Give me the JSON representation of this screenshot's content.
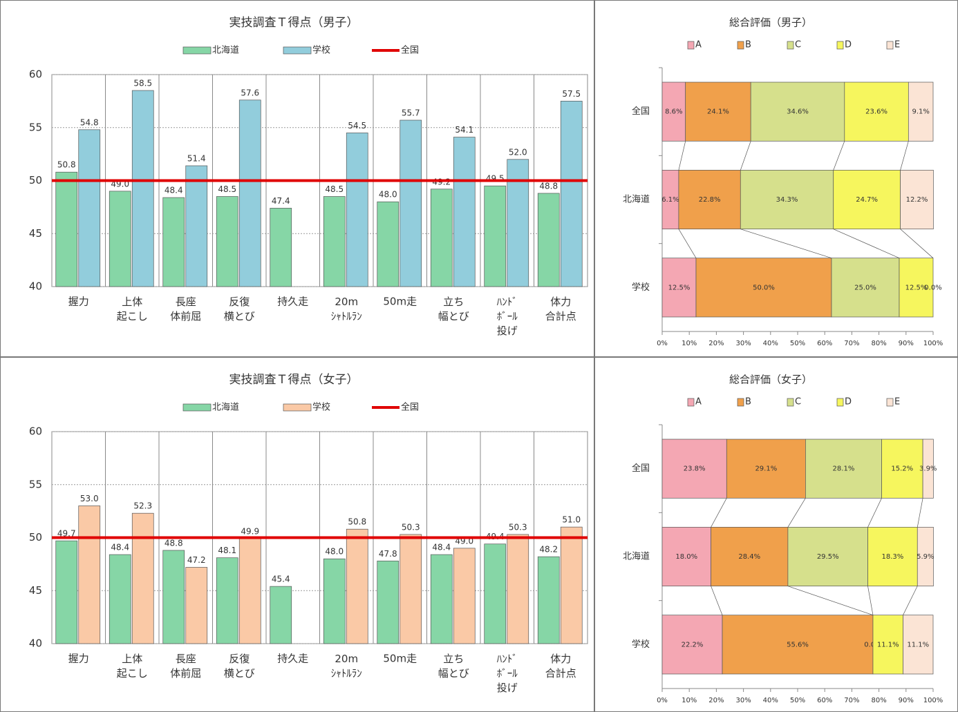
{
  "chart_data": [
    {
      "type": "bar",
      "title": "実技調査Ｔ得点（男子）",
      "categories": [
        "握力",
        "上体\n起こし",
        "長座\n体前屈",
        "反復\n横とび",
        "持久走",
        "20m\nｼｬﾄﾙﾗﾝ",
        "50m走",
        "立ち\n幅とび",
        "ﾊﾝﾄﾞ\nﾎﾞｰﾙ\n投げ",
        "体力\n合計点"
      ],
      "series": [
        {
          "name": "北海道",
          "color": "#86d6a6",
          "values": [
            50.8,
            49.0,
            48.4,
            48.5,
            47.4,
            48.5,
            48.0,
            49.2,
            49.5,
            48.8
          ],
          "value_labels": [
            "50.8",
            "49.0",
            "48.4",
            "48.5",
            "47.4",
            "48.5",
            "48.0",
            "49.2",
            "49.5",
            "48.8"
          ]
        },
        {
          "name": "学校",
          "color": "#92cddc",
          "values": [
            54.8,
            58.5,
            51.4,
            57.6,
            null,
            54.5,
            55.7,
            54.1,
            52.0,
            57.5
          ],
          "value_labels": [
            "54.8",
            "58.5",
            "51.4",
            "57.6",
            null,
            "54.5",
            "55.7",
            "54.1",
            "52.0",
            "57.5"
          ]
        }
      ],
      "reference_line": {
        "name": "全国",
        "value": 50,
        "color": "#e00000"
      },
      "ylim": [
        40,
        60
      ],
      "yticks": [
        40,
        45,
        50,
        55,
        60
      ],
      "grid": true
    },
    {
      "type": "stacked_bar_h",
      "title": "総合評価（男子）",
      "categories": [
        "全国",
        "北海道",
        "学校"
      ],
      "series": [
        {
          "name": "A",
          "color": "#f4a7b3",
          "values": [
            8.6,
            6.1,
            12.5
          ],
          "value_labels": [
            "8.6%",
            "6.1%",
            "12.5%"
          ]
        },
        {
          "name": "B",
          "color": "#f0a04b",
          "values": [
            24.1,
            22.8,
            50.0
          ],
          "value_labels": [
            "24.1%",
            "22.8%",
            "50.0%"
          ]
        },
        {
          "name": "C",
          "color": "#d6e08c",
          "values": [
            34.6,
            34.3,
            25.0
          ],
          "value_labels": [
            "34.6%",
            "34.3%",
            "25.0%"
          ]
        },
        {
          "name": "D",
          "color": "#f6f65e",
          "values": [
            23.6,
            24.7,
            12.5
          ],
          "value_labels": [
            "23.6%",
            "24.7%",
            "12.5%"
          ]
        },
        {
          "name": "E",
          "color": "#fbe4d5",
          "values": [
            9.1,
            12.2,
            0.0
          ],
          "value_labels": [
            "9.1%",
            "12.2%",
            "0.0%"
          ]
        }
      ],
      "xlim": [
        0,
        100
      ],
      "xticks": [
        {
          "value": 0,
          "label": "0%"
        },
        {
          "value": 10,
          "label": "10%"
        },
        {
          "value": 20,
          "label": "20%"
        },
        {
          "value": 30,
          "label": "30%"
        },
        {
          "value": 40,
          "label": "40%"
        },
        {
          "value": 50,
          "label": "50%"
        },
        {
          "value": 60,
          "label": "60%"
        },
        {
          "value": 70,
          "label": "70%"
        },
        {
          "value": 80,
          "label": "80%"
        },
        {
          "value": 90,
          "label": "90%"
        },
        {
          "value": 100,
          "label": "100%"
        }
      ]
    },
    {
      "type": "bar",
      "title": "実技調査Ｔ得点（女子）",
      "categories": [
        "握力",
        "上体\n起こし",
        "長座\n体前屈",
        "反復\n横とび",
        "持久走",
        "20m\nｼｬﾄﾙﾗﾝ",
        "50m走",
        "立ち\n幅とび",
        "ﾊﾝﾄﾞ\nﾎﾞｰﾙ\n投げ",
        "体力\n合計点"
      ],
      "series": [
        {
          "name": "北海道",
          "color": "#86d6a6",
          "values": [
            49.7,
            48.4,
            48.8,
            48.1,
            45.4,
            48.0,
            47.8,
            48.4,
            49.4,
            48.2
          ],
          "value_labels": [
            "49.7",
            "48.4",
            "48.8",
            "48.1",
            "45.4",
            "48.0",
            "47.8",
            "48.4",
            "49.4",
            "48.2"
          ]
        },
        {
          "name": "学校",
          "color": "#fac9a6",
          "values": [
            53.0,
            52.3,
            47.2,
            49.9,
            null,
            50.8,
            50.3,
            49.0,
            50.3,
            51.0
          ],
          "value_labels": [
            "53.0",
            "52.3",
            "47.2",
            "49.9",
            null,
            "50.8",
            "50.3",
            "49.0",
            "50.3",
            "51.0"
          ]
        }
      ],
      "reference_line": {
        "name": "全国",
        "value": 50,
        "color": "#e00000"
      },
      "ylim": [
        40,
        60
      ],
      "yticks": [
        40,
        45,
        50,
        55,
        60
      ],
      "grid": true
    },
    {
      "type": "stacked_bar_h",
      "title": "総合評価（女子）",
      "categories": [
        "全国",
        "北海道",
        "学校"
      ],
      "series": [
        {
          "name": "A",
          "color": "#f4a7b3",
          "values": [
            23.8,
            18.0,
            22.2
          ],
          "value_labels": [
            "23.8%",
            "18.0%",
            "22.2%"
          ]
        },
        {
          "name": "B",
          "color": "#f0a04b",
          "values": [
            29.1,
            28.4,
            55.6
          ],
          "value_labels": [
            "29.1%",
            "28.4%",
            "55.6%"
          ]
        },
        {
          "name": "C",
          "color": "#d6e08c",
          "values": [
            28.1,
            29.5,
            0.0
          ],
          "value_labels": [
            "28.1%",
            "29.5%",
            "0.0%"
          ]
        },
        {
          "name": "D",
          "color": "#f6f65e",
          "values": [
            15.2,
            18.3,
            11.1
          ],
          "value_labels": [
            "15.2%",
            "18.3%",
            "11.1%"
          ]
        },
        {
          "name": "E",
          "color": "#fbe4d5",
          "values": [
            3.9,
            5.9,
            11.1
          ],
          "value_labels": [
            "3.9%",
            "5.9%",
            "11.1%"
          ]
        }
      ],
      "xlim": [
        0,
        100
      ],
      "xticks": [
        {
          "value": 0,
          "label": "0%"
        },
        {
          "value": 10,
          "label": "10%"
        },
        {
          "value": 20,
          "label": "20%"
        },
        {
          "value": 30,
          "label": "30%"
        },
        {
          "value": 40,
          "label": "40%"
        },
        {
          "value": 50,
          "label": "50%"
        },
        {
          "value": 60,
          "label": "60%"
        },
        {
          "value": 70,
          "label": "70%"
        },
        {
          "value": 80,
          "label": "80%"
        },
        {
          "value": 90,
          "label": "90%"
        },
        {
          "value": 100,
          "label": "100%"
        }
      ]
    }
  ]
}
